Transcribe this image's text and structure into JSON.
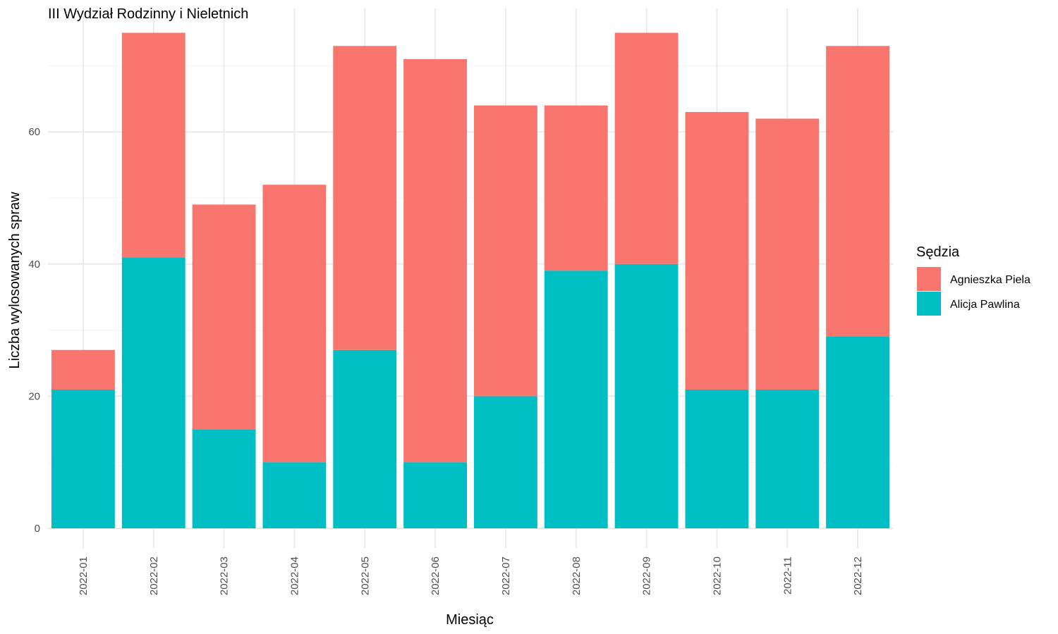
{
  "chart_data": {
    "type": "bar",
    "stacked": true,
    "title": "III Wydział Rodzinny i Nieletnich",
    "xlabel": "Miesiąc",
    "ylabel": "Liczba wylosowanych spraw",
    "ylim": [
      0,
      75
    ],
    "yticks": [
      0,
      20,
      40,
      60
    ],
    "grid": true,
    "legend_title": "Sędzia",
    "legend_position": "right",
    "categories": [
      "2022-01",
      "2022-02",
      "2022-03",
      "2022-04",
      "2022-05",
      "2022-06",
      "2022-07",
      "2022-08",
      "2022-09",
      "2022-10",
      "2022-11",
      "2022-12"
    ],
    "series": [
      {
        "name": "Alicja Pawlina",
        "color": "#00BFC4",
        "values": [
          21,
          41,
          15,
          10,
          27,
          10,
          20,
          39,
          40,
          21,
          21,
          29
        ]
      },
      {
        "name": "Agnieszka Piela",
        "color": "#F8766D",
        "values": [
          6,
          34,
          34,
          42,
          46,
          61,
          44,
          25,
          35,
          42,
          41,
          44
        ]
      }
    ],
    "legend_order": [
      "Agnieszka Piela",
      "Alicja Pawlina"
    ]
  }
}
